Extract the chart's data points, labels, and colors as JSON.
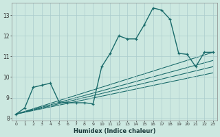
{
  "bg_color": "#cce8e0",
  "grid_color": "#aacccc",
  "line_color": "#1a6b6b",
  "xlabel": "Humidex (Indice chaleur)",
  "xlim": [
    -0.5,
    23.5
  ],
  "ylim": [
    7.9,
    13.6
  ],
  "yticks": [
    8,
    9,
    10,
    11,
    12,
    13
  ],
  "xticks": [
    0,
    1,
    2,
    3,
    4,
    5,
    6,
    7,
    8,
    9,
    10,
    11,
    12,
    13,
    14,
    15,
    16,
    17,
    18,
    19,
    20,
    21,
    22,
    23
  ],
  "main_series": [
    8.2,
    8.5,
    9.5,
    9.6,
    9.7,
    8.8,
    8.75,
    8.75,
    8.75,
    8.7,
    10.5,
    11.15,
    12.0,
    11.85,
    11.85,
    12.55,
    13.35,
    13.25,
    12.8,
    11.15,
    11.1,
    10.5,
    11.2,
    11.2
  ],
  "reg_lines": [
    {
      "x0": 0,
      "y0": 8.2,
      "x1": 23,
      "y1": 11.2
    },
    {
      "x0": 0,
      "y0": 8.2,
      "x1": 23,
      "y1": 10.8
    },
    {
      "x0": 0,
      "y0": 8.2,
      "x1": 23,
      "y1": 10.5
    },
    {
      "x0": 0,
      "y0": 8.2,
      "x1": 23,
      "y1": 10.2
    }
  ]
}
